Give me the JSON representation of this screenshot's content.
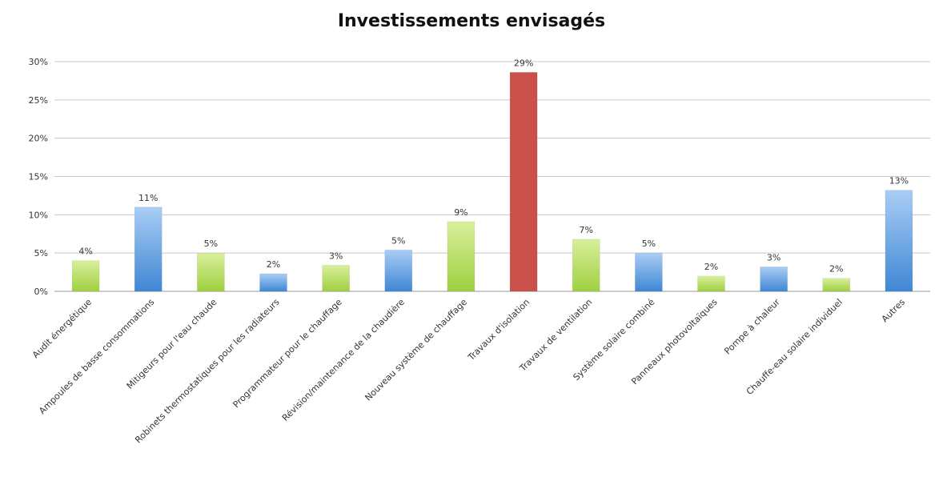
{
  "chart_data": {
    "type": "bar",
    "title": "Investissements envisagés",
    "xlabel": "",
    "ylabel": "",
    "ylim": [
      0,
      30
    ],
    "yticks": [
      0,
      5,
      10,
      15,
      20,
      25,
      30
    ],
    "ytick_labels": [
      "0%",
      "5%",
      "10%",
      "15%",
      "20%",
      "25%",
      "30%"
    ],
    "grid": true,
    "legend": "none",
    "categories": [
      "Audit énergétique",
      "Ampoules de basse consommations",
      "Mitigeurs pour l'eau chaude",
      "Robinets thermostatiques pour les radiateurs",
      "Programmateur pour le chauffage",
      "Révision/maintenance de la chaudière",
      "Nouveau système de chauffage",
      "Travaux d'isolation",
      "Travaux de ventilation",
      "Système solaire combiné",
      "Panneaux photovoltaïques",
      "Pompe à chaleur",
      "Chauffe-eau solaire individuel",
      "Autres"
    ],
    "values": [
      4,
      11,
      5,
      2.3,
      3.4,
      5.4,
      9.1,
      28.6,
      6.8,
      5,
      2,
      3.2,
      1.7,
      13.2
    ],
    "data_labels": [
      "4%",
      "11%",
      "5%",
      "2%",
      "3%",
      "5%",
      "9%",
      "29%",
      "7%",
      "5%",
      "2%",
      "3%",
      "2%",
      "13%"
    ],
    "bar_colors": [
      "green",
      "blue",
      "green",
      "blue",
      "green",
      "blue",
      "green",
      "red",
      "green",
      "blue",
      "green",
      "blue",
      "green",
      "blue"
    ],
    "palette": {
      "green_top": "#d9ef9c",
      "green_bottom": "#9fd040",
      "blue_top": "#a9cdf5",
      "blue_bottom": "#3f87d4",
      "red": "#c9504b",
      "grid": "#c8c8c8",
      "axis": "#999999"
    }
  }
}
